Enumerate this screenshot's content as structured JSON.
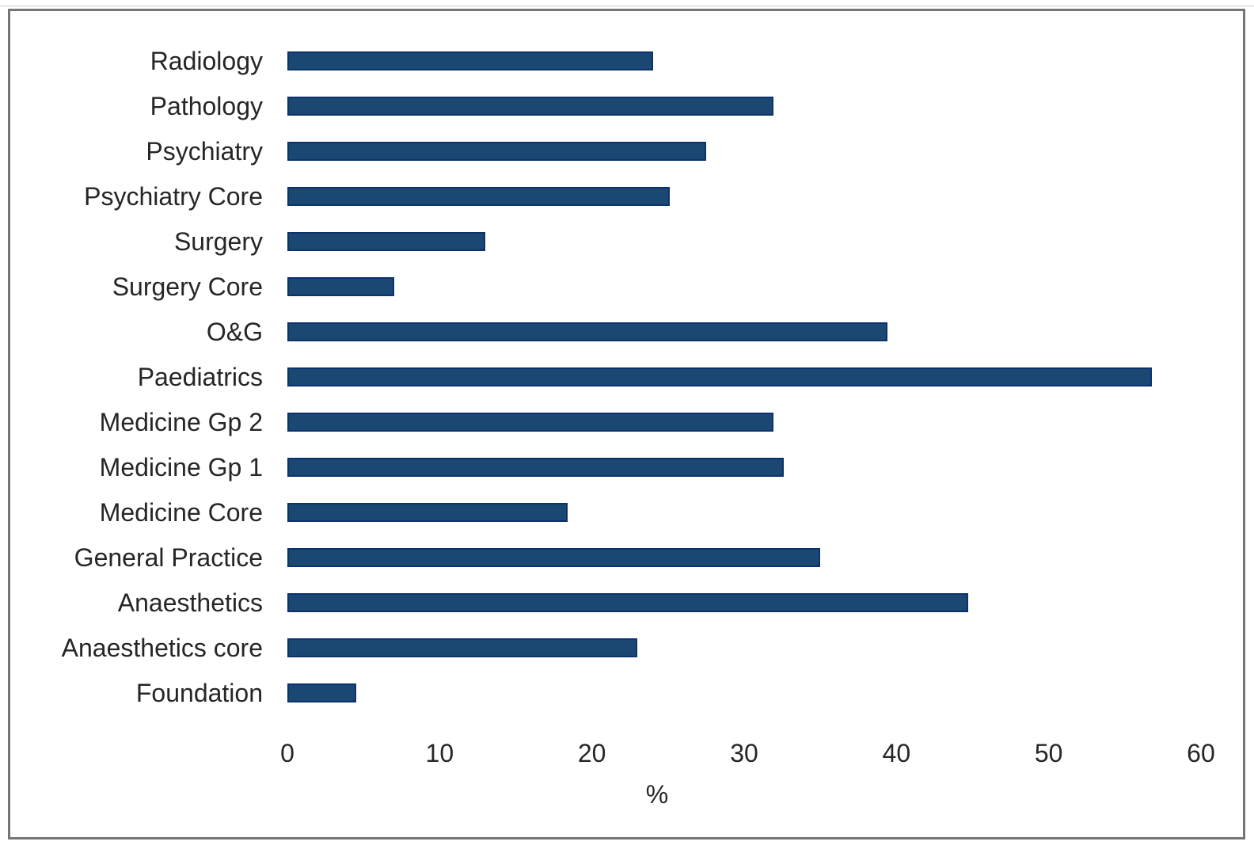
{
  "figure": {
    "background": "#ffffff",
    "frame_border_color": "#757575",
    "text_color": "#262626"
  },
  "chart_data": {
    "type": "bar",
    "orientation": "horizontal",
    "title": "",
    "xlabel": "%",
    "ylabel": "",
    "xlim": [
      0,
      60
    ],
    "x_ticks": [
      0,
      10,
      20,
      30,
      40,
      50,
      60
    ],
    "grid": false,
    "legend": false,
    "bar_fill_color": "#1b4873",
    "bar_border_color": "#0d306e",
    "categories": [
      "Radiology",
      "Pathology",
      "Psychiatry",
      "Psychiatry Core",
      "Surgery",
      "Surgery Core",
      "O&G",
      "Paediatrics",
      "Medicine Gp 2",
      "Medicine Gp 1",
      "Medicine Core",
      "General Practice",
      "Anaesthetics",
      "Anaesthetics core",
      "Foundation"
    ],
    "values": [
      24,
      31.9,
      27.5,
      25.1,
      13,
      7,
      39.4,
      56.8,
      31.9,
      32.6,
      18.4,
      35,
      44.7,
      23,
      4.5
    ]
  }
}
